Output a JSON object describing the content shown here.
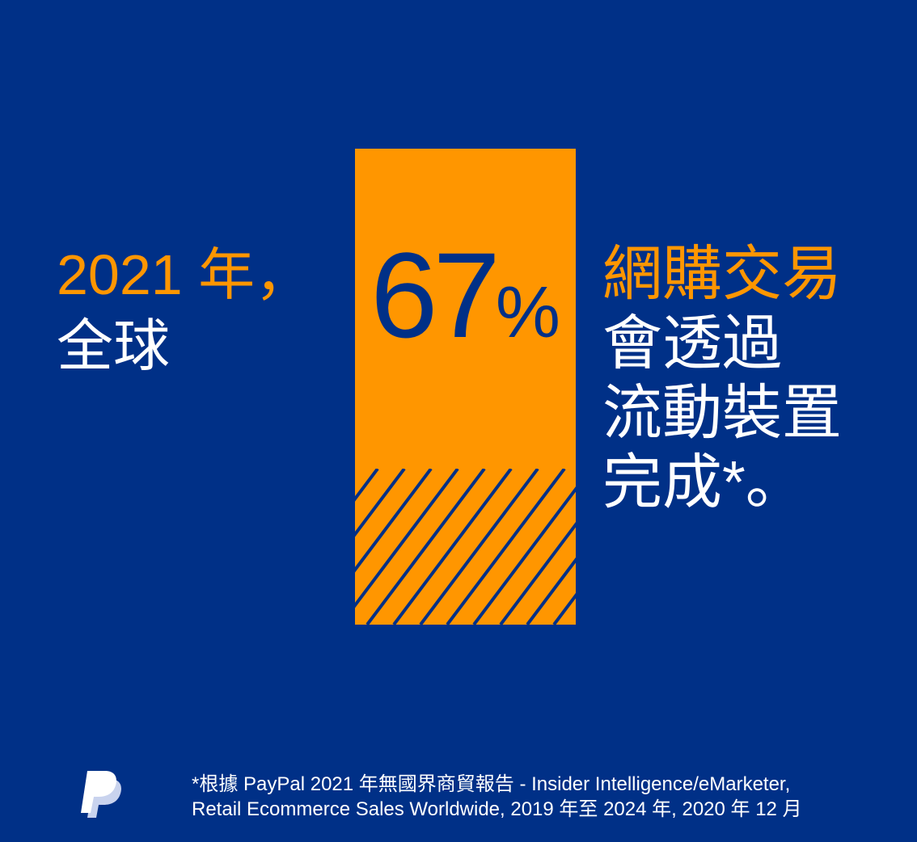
{
  "headline_left": {
    "line1": "2021 年，",
    "line2": "全球"
  },
  "stat": {
    "value": "67",
    "unit": "%",
    "fraction_shaded": 0.67
  },
  "headline_right": {
    "line1": "網購交易",
    "line2": "會透過",
    "line3": "流動裝置",
    "line4": "完成*。"
  },
  "footnote": {
    "line1": "*根據 PayPal 2021 年無國界商貿報告 - Insider Intelligence/eMarketer,",
    "line2": "Retail Ecommerce Sales Worldwide, 2019 年至 2024 年, 2020 年 12 月"
  },
  "logo": {
    "brand": "PayPal",
    "icon": "paypal-logo-icon"
  },
  "colors": {
    "background": "#003087",
    "accent": "#ff9600",
    "text": "#ffffff"
  }
}
